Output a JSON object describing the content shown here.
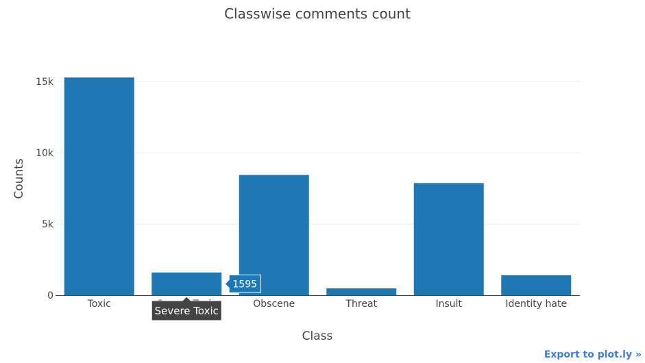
{
  "chart_data": {
    "type": "bar",
    "title": "Classwise comments count",
    "xlabel": "Class",
    "ylabel": "Counts",
    "categories": [
      "Toxic",
      "Severe Toxic",
      "Obscene",
      "Threat",
      "Insult",
      "Identity hate"
    ],
    "values": [
      15294,
      1595,
      8449,
      478,
      7877,
      1405
    ],
    "ylim": [
      0,
      15300
    ],
    "yticks": [
      0,
      5000,
      10000,
      15000
    ],
    "ytick_labels": [
      "0",
      "5k",
      "10k",
      "15k"
    ],
    "grid": true,
    "bar_color": "#1f77b4",
    "hover": {
      "category_index": 1,
      "value_label": "1595",
      "category_label": "Severe Toxic"
    }
  },
  "export_link": "Export to plot.ly »"
}
